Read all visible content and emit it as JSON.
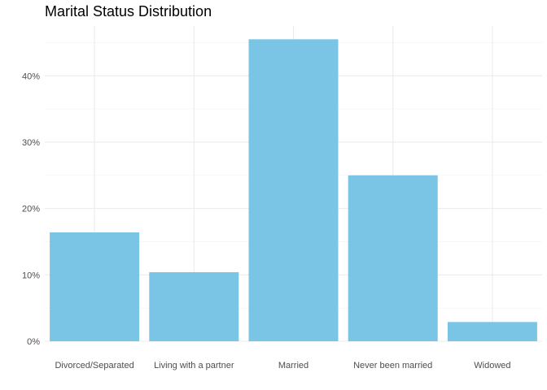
{
  "chart_data": {
    "type": "bar",
    "title": "Marital Status Distribution",
    "xlabel": "",
    "ylabel": "",
    "categories": [
      "Divorced/Separated",
      "Living with a partner",
      "Married",
      "Never been married",
      "Widowed"
    ],
    "values": [
      16.4,
      10.4,
      45.5,
      25.0,
      2.9
    ],
    "ylim": [
      0,
      47.5
    ],
    "yticks": [
      0,
      10,
      20,
      30,
      40
    ],
    "ytick_labels": [
      "0%",
      "10%",
      "20%",
      "30%",
      "40%"
    ],
    "bar_color": "#7AC4E6",
    "grid": true,
    "legend": "none"
  }
}
